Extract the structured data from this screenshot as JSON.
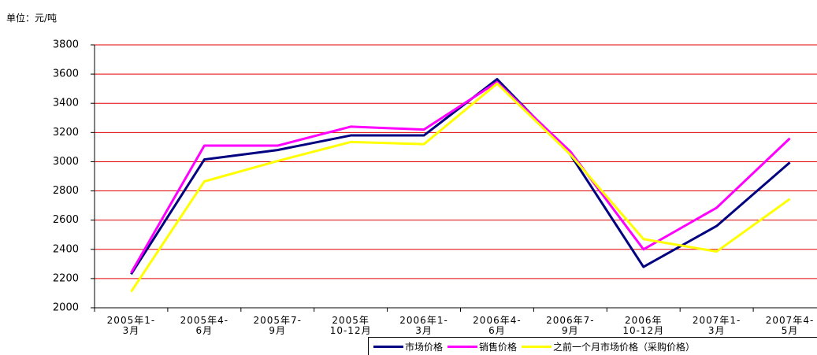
{
  "chart_data": {
    "type": "line",
    "unit": "单位：元/吨",
    "categories": [
      "2005年1-\n3月",
      "2005年4-\n6月",
      "2005年7-\n9月",
      "2005年\n10-12月",
      "2006年1-\n3月",
      "2006年4-\n6月",
      "2006年7-\n9月",
      "2006年\n10-12月",
      "2007年1-\n3月",
      "2007年4-\n5月"
    ],
    "series": [
      {
        "name": "市场价格",
        "color": "#000080",
        "values": [
          2230,
          3015,
          3080,
          3180,
          3180,
          3565,
          3050,
          2280,
          2560,
          2995
        ]
      },
      {
        "name": "销售价格",
        "color": "#ff00ff",
        "values": [
          2240,
          3110,
          3110,
          3240,
          3220,
          3545,
          3070,
          2400,
          2685,
          3160
        ]
      },
      {
        "name": "之前一个月市场价格（采购价格）",
        "color": "#ffff00",
        "values": [
          2110,
          2865,
          3005,
          3135,
          3120,
          3535,
          3050,
          2470,
          2385,
          2745
        ]
      }
    ],
    "ylim": [
      2000,
      3800
    ],
    "yticks": [
      2000,
      2200,
      2400,
      2600,
      2800,
      3000,
      3200,
      3400,
      3600,
      3800
    ],
    "grid": true,
    "grid_color": "#e00000",
    "legend": "bottom"
  }
}
